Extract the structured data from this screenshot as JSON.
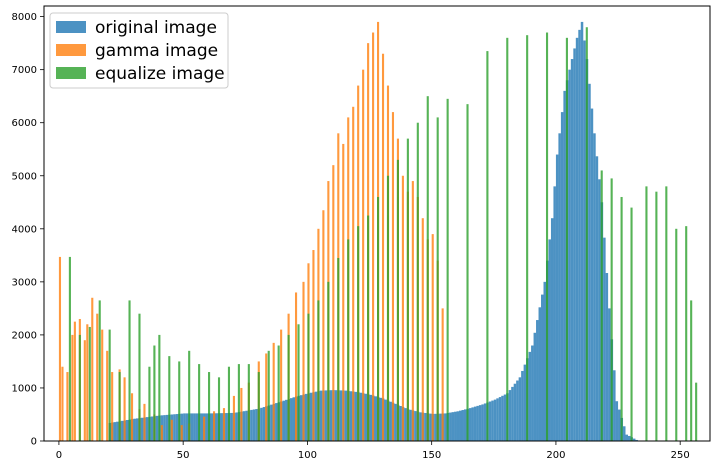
{
  "chart_data": {
    "type": "bar",
    "subtype": "overlapping-histogram",
    "title": "",
    "xlabel": "",
    "ylabel": "",
    "xlim": [
      -6,
      262
    ],
    "ylim": [
      0,
      8200
    ],
    "x_ticks": [
      0,
      50,
      100,
      150,
      200,
      250
    ],
    "y_ticks": [
      0,
      1000,
      2000,
      3000,
      4000,
      5000,
      6000,
      7000,
      8000
    ],
    "x_tick_labels": [
      "0",
      "50",
      "100",
      "150",
      "200",
      "250"
    ],
    "y_tick_labels": [
      "0",
      "1000",
      "2000",
      "3000",
      "4000",
      "5000",
      "6000",
      "7000",
      "8000"
    ],
    "legend_position": "upper-left",
    "series": [
      {
        "name": "original image",
        "color": "#1f77b4",
        "opacity": 0.8,
        "points": [
          [
            20,
            340
          ],
          [
            30,
            420
          ],
          [
            40,
            480
          ],
          [
            50,
            520
          ],
          [
            60,
            520
          ],
          [
            70,
            530
          ],
          [
            80,
            610
          ],
          [
            90,
            760
          ],
          [
            95,
            840
          ],
          [
            100,
            900
          ],
          [
            105,
            950
          ],
          [
            110,
            960
          ],
          [
            115,
            950
          ],
          [
            120,
            920
          ],
          [
            125,
            870
          ],
          [
            130,
            800
          ],
          [
            135,
            700
          ],
          [
            140,
            600
          ],
          [
            145,
            540
          ],
          [
            150,
            510
          ],
          [
            155,
            520
          ],
          [
            160,
            560
          ],
          [
            165,
            620
          ],
          [
            170,
            690
          ],
          [
            175,
            780
          ],
          [
            180,
            900
          ],
          [
            185,
            1200
          ],
          [
            190,
            1800
          ],
          [
            195,
            3000
          ],
          [
            198,
            4200
          ],
          [
            200,
            5400
          ],
          [
            203,
            6600
          ],
          [
            206,
            7200
          ],
          [
            208,
            7600
          ],
          [
            210,
            7900
          ],
          [
            212,
            7200
          ],
          [
            215,
            5800
          ],
          [
            218,
            4500
          ],
          [
            221,
            2500
          ],
          [
            224,
            750
          ],
          [
            228,
            120
          ],
          [
            232,
            20
          ]
        ]
      },
      {
        "name": "gamma image",
        "color": "#ff7f0e",
        "opacity": 0.8,
        "points": [
          [
            0,
            3470
          ],
          [
            1,
            1400
          ],
          [
            3,
            1300
          ],
          [
            5,
            2000
          ],
          [
            6,
            2250
          ],
          [
            8,
            2300
          ],
          [
            10,
            1900
          ],
          [
            11,
            2200
          ],
          [
            13,
            2700
          ],
          [
            15,
            2400
          ],
          [
            17,
            2100
          ],
          [
            19,
            1700
          ],
          [
            21,
            1300
          ],
          [
            24,
            1350
          ],
          [
            26,
            1200
          ],
          [
            29,
            900
          ],
          [
            32,
            600
          ],
          [
            34,
            700
          ],
          [
            38,
            500
          ],
          [
            41,
            300
          ],
          [
            45,
            400
          ],
          [
            49,
            300
          ],
          [
            52,
            330
          ],
          [
            58,
            460
          ],
          [
            62,
            560
          ],
          [
            66,
            620
          ],
          [
            70,
            850
          ],
          [
            73,
            1000
          ],
          [
            76,
            1100
          ],
          [
            80,
            1500
          ],
          [
            83,
            1650
          ],
          [
            86,
            1850
          ],
          [
            89,
            2100
          ],
          [
            92,
            2400
          ],
          [
            95,
            2800
          ],
          [
            98,
            3000
          ],
          [
            100,
            3350
          ],
          [
            102,
            3600
          ],
          [
            104,
            4000
          ],
          [
            106,
            4350
          ],
          [
            108,
            4900
          ],
          [
            110,
            5200
          ],
          [
            112,
            5800
          ],
          [
            114,
            5600
          ],
          [
            116,
            6100
          ],
          [
            118,
            6300
          ],
          [
            120,
            6700
          ],
          [
            122,
            7000
          ],
          [
            124,
            7500
          ],
          [
            126,
            7700
          ],
          [
            128,
            7900
          ],
          [
            130,
            7300
          ],
          [
            132,
            6700
          ],
          [
            134,
            6200
          ],
          [
            136,
            5700
          ],
          [
            138,
            5000
          ],
          [
            140,
            4700
          ],
          [
            142,
            4900
          ],
          [
            144,
            4600
          ],
          [
            146,
            4200
          ],
          [
            148,
            3800
          ],
          [
            150,
            3900
          ],
          [
            152,
            3400
          ],
          [
            154,
            2500
          ]
        ]
      },
      {
        "name": "equalize image",
        "color": "#2ca02c",
        "opacity": 0.8,
        "points": [
          [
            4,
            3470
          ],
          [
            8,
            2000
          ],
          [
            12,
            2150
          ],
          [
            16,
            2650
          ],
          [
            20,
            2100
          ],
          [
            24,
            1300
          ],
          [
            28,
            2650
          ],
          [
            32,
            2400
          ],
          [
            36,
            1400
          ],
          [
            38,
            1800
          ],
          [
            40,
            2000
          ],
          [
            44,
            1600
          ],
          [
            48,
            1500
          ],
          [
            52,
            1700
          ],
          [
            56,
            1450
          ],
          [
            60,
            1300
          ],
          [
            64,
            1200
          ],
          [
            68,
            1400
          ],
          [
            72,
            1450
          ],
          [
            76,
            1450
          ],
          [
            80,
            1300
          ],
          [
            84,
            1700
          ],
          [
            88,
            1800
          ],
          [
            92,
            2000
          ],
          [
            96,
            2200
          ],
          [
            100,
            2400
          ],
          [
            104,
            2650
          ],
          [
            108,
            3000
          ],
          [
            112,
            3450
          ],
          [
            116,
            3800
          ],
          [
            120,
            4050
          ],
          [
            124,
            4250
          ],
          [
            128,
            4600
          ],
          [
            132,
            5000
          ],
          [
            136,
            5300
          ],
          [
            140,
            5700
          ],
          [
            144,
            6000
          ],
          [
            148,
            6500
          ],
          [
            152,
            6100
          ],
          [
            156,
            6450
          ],
          [
            164,
            6350
          ],
          [
            172,
            7350
          ],
          [
            180,
            7600
          ],
          [
            188,
            7650
          ],
          [
            196,
            7700
          ],
          [
            204,
            7600
          ],
          [
            212,
            7800
          ],
          [
            218,
            5100
          ],
          [
            222,
            4950
          ],
          [
            226,
            4600
          ],
          [
            230,
            4400
          ],
          [
            236,
            4800
          ],
          [
            240,
            4700
          ],
          [
            244,
            4800
          ],
          [
            248,
            4000
          ],
          [
            252,
            4050
          ],
          [
            254,
            2650
          ],
          [
            256,
            1100
          ]
        ]
      }
    ]
  }
}
